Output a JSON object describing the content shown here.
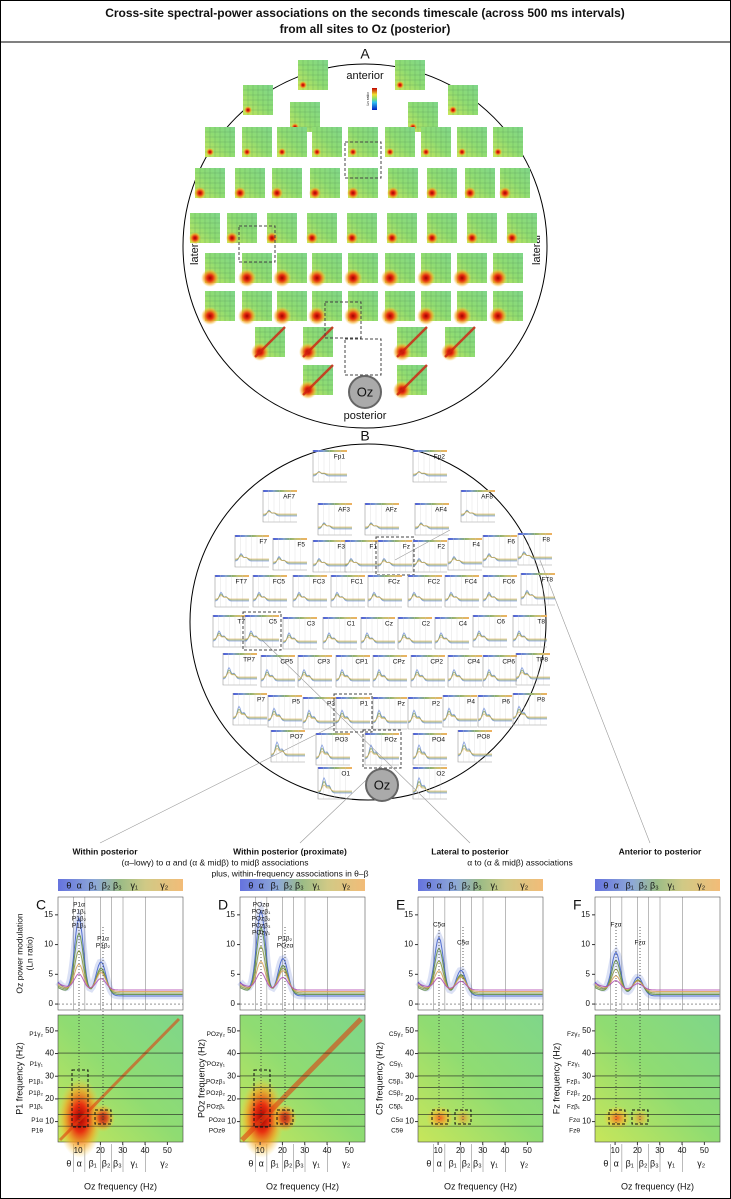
{
  "header": {
    "title_lines": [
      "Cross-site spectral-power associations on the seconds timescale (across 500 ms intervals)",
      "from all sites to Oz (posterior)"
    ]
  },
  "panel_a": {
    "label": "A",
    "anterior": "anterior",
    "posterior": "posterior",
    "lateral_left": "lateral",
    "lateral_right": "lateral",
    "center_site": "Oz",
    "colorbar_label": "Ln ratio"
  },
  "panel_b": {
    "label": "B",
    "center_site": "Oz",
    "sites": [
      "Fp1",
      "Fp2",
      "AF7",
      "AF3",
      "AFz",
      "AF4",
      "AF8",
      "F7",
      "F5",
      "F3",
      "F1",
      "Fz",
      "F2",
      "F4",
      "F6",
      "F8",
      "FT7",
      "FC5",
      "FC3",
      "FC1",
      "FCz",
      "FC2",
      "FC4",
      "FC6",
      "FT8",
      "T7",
      "C5",
      "C3",
      "C1",
      "Cz",
      "C2",
      "C4",
      "C6",
      "T8",
      "TP7",
      "CP5",
      "CP3",
      "CP1",
      "CPz",
      "CP2",
      "CP4",
      "CP6",
      "TP8",
      "P7",
      "P5",
      "P3",
      "P1",
      "Pz",
      "P2",
      "P4",
      "P6",
      "P8",
      "PO7",
      "PO3",
      "POz",
      "PO4",
      "PO8",
      "O1",
      "O2"
    ]
  },
  "annotations": {
    "within_posterior": "Within posterior",
    "within_posterior_detail": "(α–lowγ) to α and (α & midβ) to midβ associations",
    "within_proximate": "Within posterior (proximate)",
    "within_proximate_detail": "plus, within-frequency associations in θ–β",
    "lateral": "Lateral to posterior",
    "lateral_detail": "α to (α & midβ) associations",
    "anterior": "Anterior to posterior"
  },
  "axes": {
    "top_ylim": [
      -1,
      18
    ],
    "freq_lim": [
      1,
      57
    ],
    "top_yticks": [
      0,
      5,
      10,
      15
    ],
    "freq_ticks": [
      10,
      20,
      30,
      40,
      50
    ],
    "bands": [
      "θ",
      "α",
      "β₁",
      "β₂",
      "β₃",
      "γ₁",
      "γ₂"
    ],
    "top_y_label": [
      "Oz power modulation",
      "(Ln ratio)"
    ],
    "x_label": "Oz frequency (Hz)"
  },
  "panels": [
    {
      "label": "C",
      "y_label": "P1 frequency (Hz)",
      "row_labels": [
        "P1θ",
        "P1α",
        "P1β₁",
        "P1β₂",
        "P1β₃",
        "P1γ₁",
        "P1γ₂"
      ],
      "peak_labels_1": [
        "P1α",
        "P1β₁",
        "P1β₂",
        "P1β₃"
      ],
      "peak_labels_2": [
        "P1α",
        "P1β₂"
      ]
    },
    {
      "label": "D",
      "y_label": "POz frequency (Hz)",
      "row_labels": [
        "POzθ",
        "POzα",
        "POzβ₁",
        "POzβ₂",
        "POzβ₃",
        "POzγ₁",
        "POzγ₂"
      ],
      "peak_labels_1": [
        "POzα",
        "POzβ₁",
        "POzβ₂",
        "POzβ₃",
        "POzγ₁"
      ],
      "peak_labels_2": [
        "P1β₂",
        "POzα"
      ]
    },
    {
      "label": "E",
      "y_label": "C5 frequency (Hz)",
      "row_labels": [
        "C5θ",
        "C5α",
        "C5β₁",
        "C5β₂",
        "C5β₃",
        "C5γ₁",
        "C5γ₂"
      ],
      "peak_labels_1": [
        "C5α"
      ],
      "peak_labels_2": [
        "C5α"
      ]
    },
    {
      "label": "F",
      "y_label": "Fz frequency (Hz)",
      "row_labels": [
        "Fzθ",
        "Fzα",
        "Fzβ₁",
        "Fzβ₂",
        "Fzβ₃",
        "Fzγ₁",
        "Fzγ₂"
      ],
      "peak_labels_1": [
        "Fzα"
      ],
      "peak_labels_2": [
        "Fzα"
      ]
    }
  ]
}
